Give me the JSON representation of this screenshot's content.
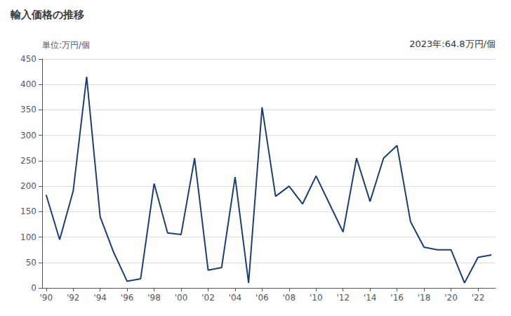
{
  "chart_data": {
    "type": "line",
    "title": "輸入価格の推移",
    "ylabel": "単位:万円/個",
    "annotation": "2023年:64.8万円/個",
    "x": [
      1990,
      1991,
      1992,
      1993,
      1994,
      1995,
      1996,
      1997,
      1998,
      1999,
      2000,
      2001,
      2002,
      2003,
      2004,
      2005,
      2006,
      2007,
      2008,
      2009,
      2010,
      2011,
      2012,
      2013,
      2014,
      2015,
      2016,
      2017,
      2018,
      2019,
      2020,
      2021,
      2022,
      2023
    ],
    "values": [
      183,
      95,
      190,
      415,
      140,
      70,
      13,
      18,
      205,
      108,
      105,
      255,
      35,
      40,
      218,
      10,
      355,
      180,
      200,
      165,
      220,
      165,
      110,
      255,
      170,
      255,
      280,
      130,
      80,
      75,
      75,
      10,
      60,
      65
    ],
    "color": "#1f3e6e",
    "xlim": [
      1989.7,
      2023.3
    ],
    "xticks": [
      {
        "value": 1990,
        "label": "'90"
      },
      {
        "value": 1992,
        "label": "'92"
      },
      {
        "value": 1994,
        "label": "'94"
      },
      {
        "value": 1996,
        "label": "'96"
      },
      {
        "value": 1998,
        "label": "'98"
      },
      {
        "value": 2000,
        "label": "'00"
      },
      {
        "value": 2002,
        "label": "'02"
      },
      {
        "value": 2004,
        "label": "'04"
      },
      {
        "value": 2006,
        "label": "'06"
      },
      {
        "value": 2008,
        "label": "'08"
      },
      {
        "value": 2010,
        "label": "'10"
      },
      {
        "value": 2012,
        "label": "'12"
      },
      {
        "value": 2014,
        "label": "'14"
      },
      {
        "value": 2016,
        "label": "'16"
      },
      {
        "value": 2018,
        "label": "'18"
      },
      {
        "value": 2020,
        "label": "'20"
      },
      {
        "value": 2022,
        "label": "'22"
      }
    ],
    "ylim": [
      0,
      450
    ],
    "yticks": [
      0,
      50,
      100,
      150,
      200,
      250,
      300,
      350,
      400,
      450
    ],
    "grid": "y"
  }
}
